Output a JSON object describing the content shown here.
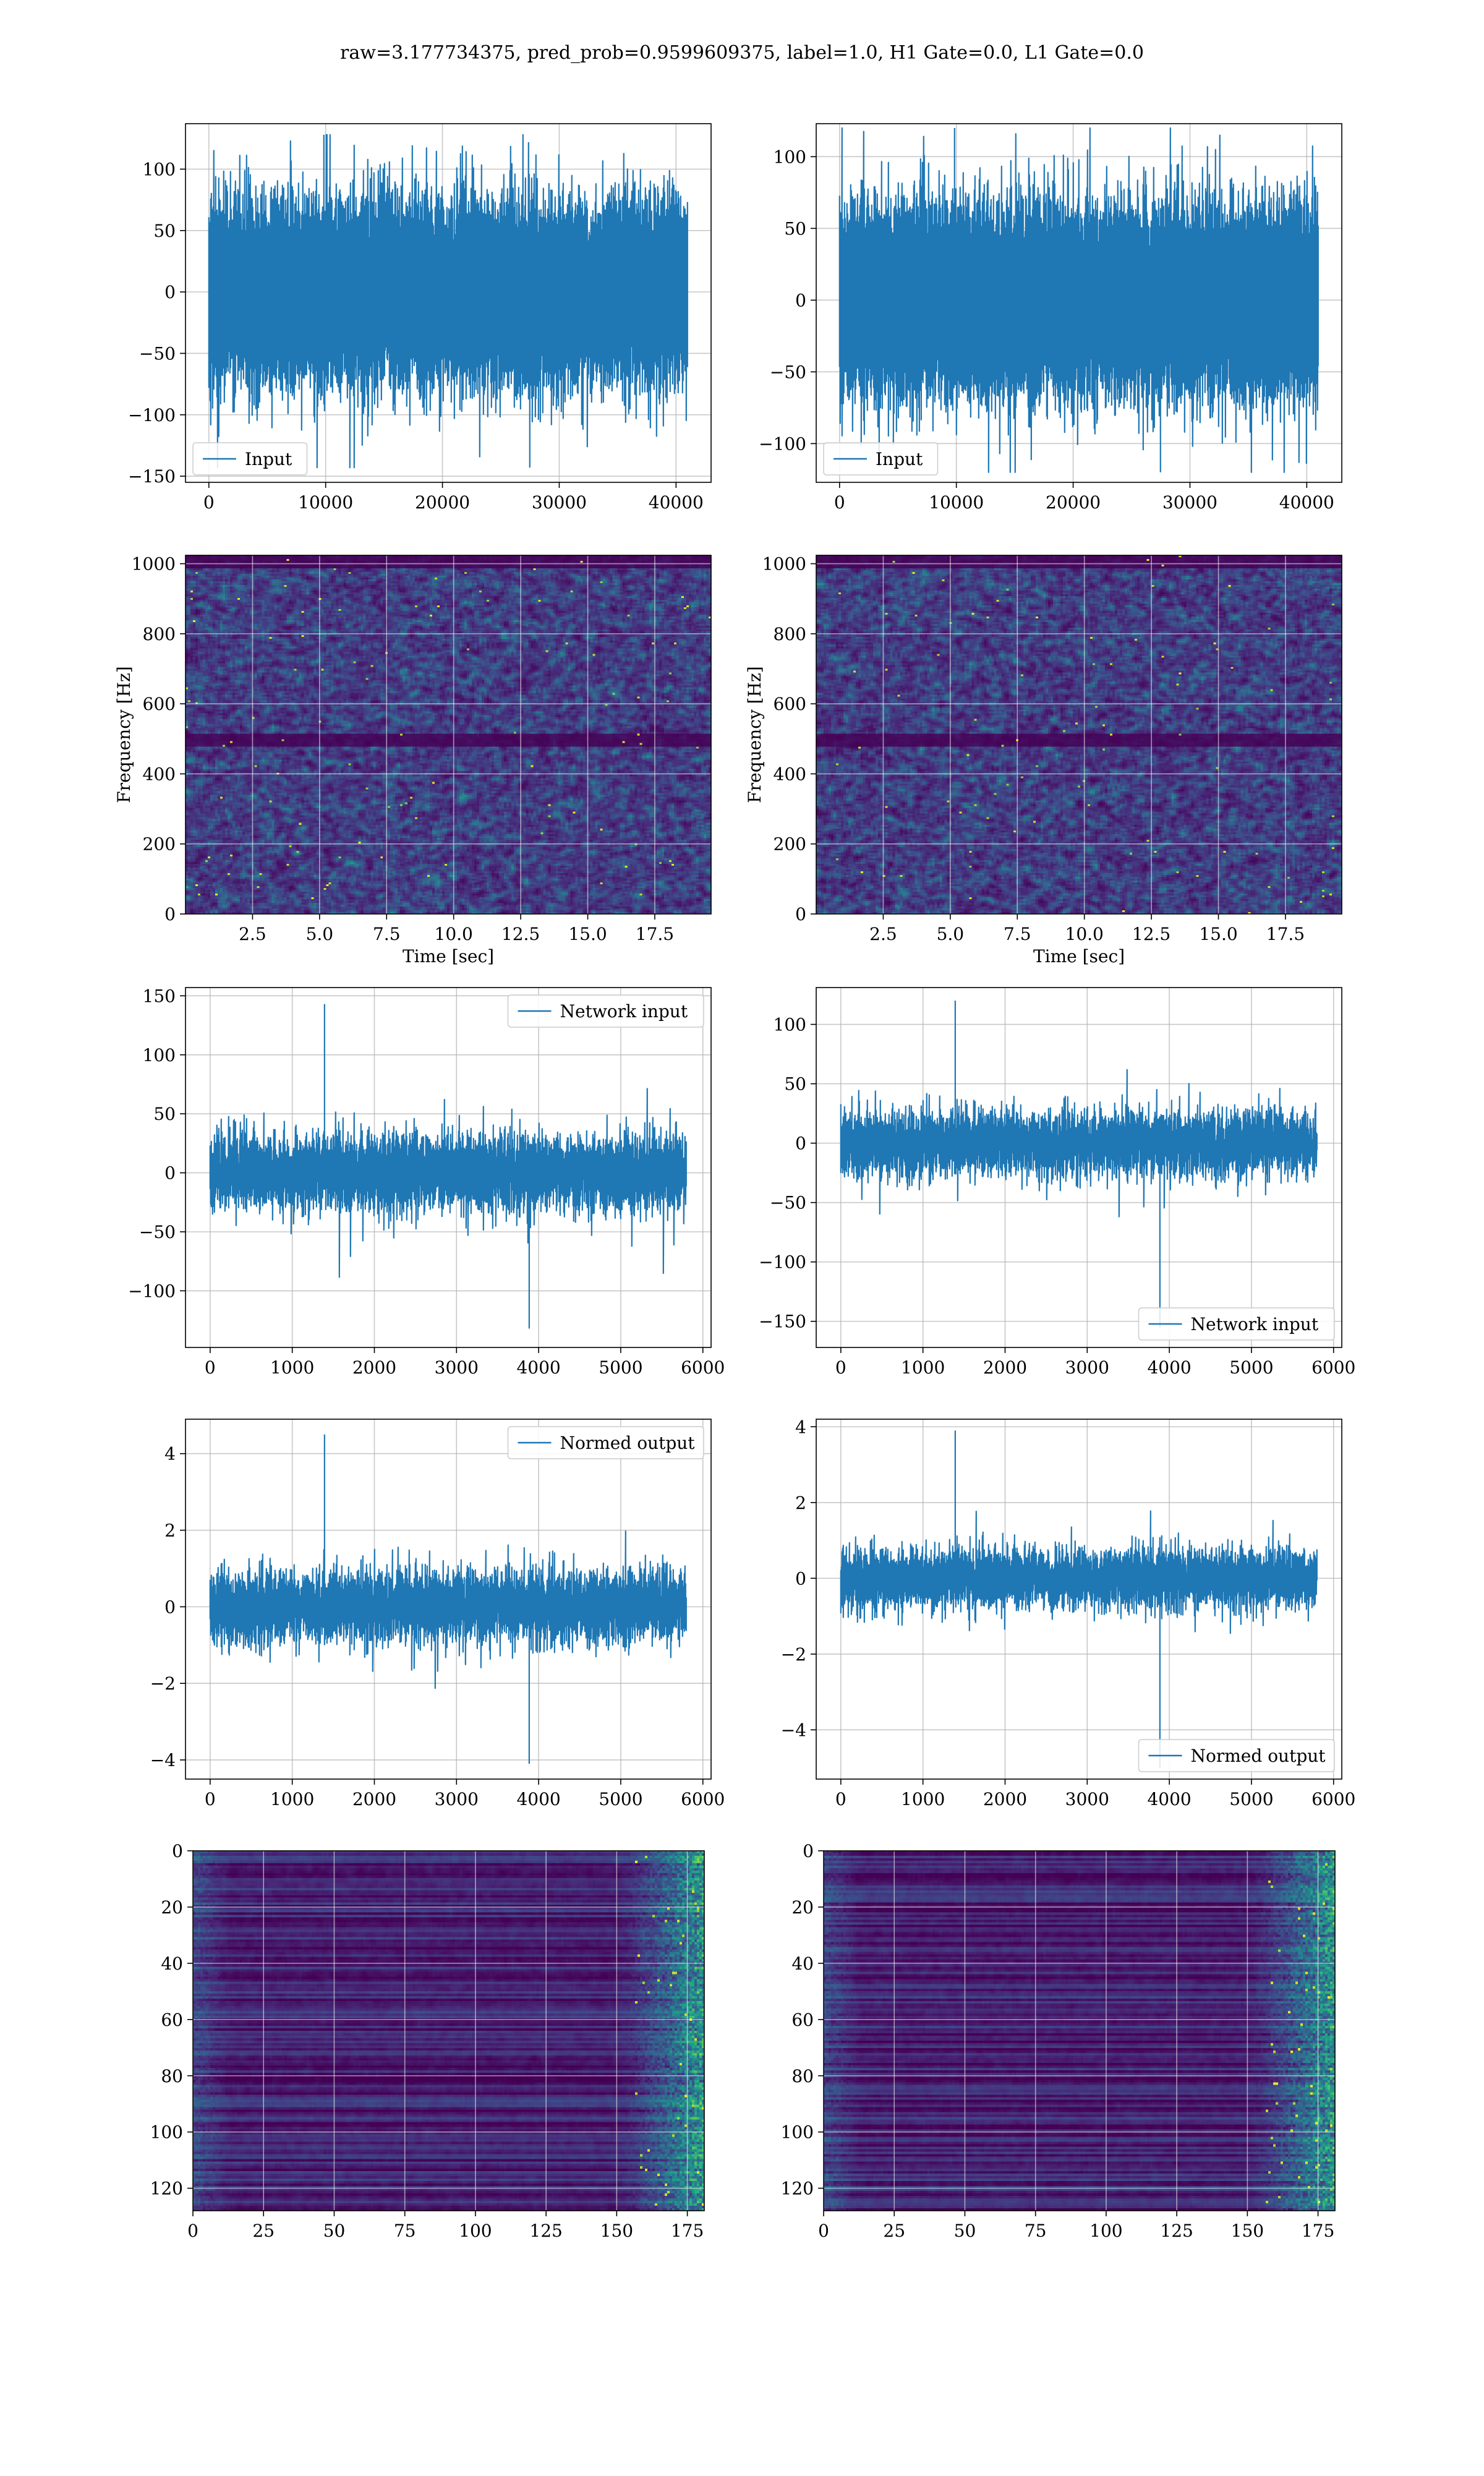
{
  "figure": {
    "suptitle": "raw=3.177734375, pred_prob=0.9599609375, label=1.0, H1 Gate=0.0, L1 Gate=0.0"
  },
  "colors": {
    "line": "#1f77b4",
    "grid": "#b0b0b0",
    "viridis_dark": "#440154",
    "viridis_mid": "#3b528b",
    "viridis_teal": "#21918c",
    "viridis_yellow": "#fde725"
  },
  "chart_data": [
    {
      "id": "input-h1",
      "type": "line",
      "legend": "Input",
      "legend_loc": "lower-left",
      "xlim": [
        -2000,
        43000
      ],
      "xticks": [
        0,
        10000,
        20000,
        30000,
        40000
      ],
      "ylim": [
        -155,
        137
      ],
      "yticks": [
        -150,
        -100,
        -50,
        0,
        50,
        100
      ],
      "signal": {
        "n_samples": 40960,
        "x_end": 40960,
        "core_amp": 65,
        "peak_max": 128,
        "peak_min": -143
      }
    },
    {
      "id": "input-l1",
      "type": "line",
      "legend": "Input",
      "legend_loc": "lower-left",
      "xlim": [
        -2000,
        43000
      ],
      "xticks": [
        0,
        10000,
        20000,
        30000,
        40000
      ],
      "ylim": [
        -127,
        123
      ],
      "yticks": [
        -100,
        -50,
        0,
        50,
        100
      ],
      "signal": {
        "n_samples": 40960,
        "x_end": 40960,
        "core_amp": 60,
        "peak_max": 120,
        "peak_min": -120
      }
    },
    {
      "id": "spec-h1",
      "type": "heatmap",
      "xlabel": "Time [sec]",
      "ylabel": "Frequency [Hz]",
      "xlim": [
        0,
        19.6
      ],
      "xticks": [
        2.5,
        5.0,
        7.5,
        10.0,
        12.5,
        15.0,
        17.5
      ],
      "xtick_labels": [
        "2.5",
        "5.0",
        "7.5",
        "10.0",
        "12.5",
        "15.0",
        "17.5"
      ],
      "ylim": [
        0,
        1024
      ],
      "yticks": [
        0,
        200,
        400,
        600,
        800,
        1000
      ],
      "colormap": "viridis",
      "dark_bands_hz": [
        500,
        1010
      ]
    },
    {
      "id": "spec-l1",
      "type": "heatmap",
      "xlabel": "Time [sec]",
      "ylabel": "Frequency [Hz]",
      "xlim": [
        0,
        19.6
      ],
      "xticks": [
        2.5,
        5.0,
        7.5,
        10.0,
        12.5,
        15.0,
        17.5
      ],
      "xtick_labels": [
        "2.5",
        "5.0",
        "7.5",
        "10.0",
        "12.5",
        "15.0",
        "17.5"
      ],
      "ylim": [
        0,
        1024
      ],
      "yticks": [
        0,
        200,
        400,
        600,
        800,
        1000
      ],
      "colormap": "viridis",
      "dark_bands_hz": [
        500,
        1010
      ]
    },
    {
      "id": "netin-h1",
      "type": "line",
      "legend": "Network input",
      "legend_loc": "upper-right",
      "xlim": [
        -300,
        6100
      ],
      "xticks": [
        0,
        1000,
        2000,
        3000,
        4000,
        5000,
        6000
      ],
      "ylim": [
        -148,
        157
      ],
      "yticks": [
        -100,
        -50,
        0,
        50,
        100,
        150
      ],
      "signal": {
        "n_samples": 5800,
        "x_end": 5800,
        "core_amp": 45,
        "peak_max": 143,
        "peak_min": -132
      }
    },
    {
      "id": "netin-l1",
      "type": "line",
      "legend": "Network input",
      "legend_loc": "lower-right",
      "xlim": [
        -300,
        6100
      ],
      "xticks": [
        0,
        1000,
        2000,
        3000,
        4000,
        5000,
        6000
      ],
      "ylim": [
        -172,
        131
      ],
      "yticks": [
        -150,
        -100,
        -50,
        0,
        50,
        100
      ],
      "signal": {
        "n_samples": 5800,
        "x_end": 5800,
        "core_amp": 38,
        "peak_max": 120,
        "peak_min": -155
      }
    },
    {
      "id": "normed-h1",
      "type": "line",
      "legend": "Normed output",
      "legend_loc": "upper-right",
      "xlim": [
        -300,
        6100
      ],
      "xticks": [
        0,
        1000,
        2000,
        3000,
        4000,
        5000,
        6000
      ],
      "ylim": [
        -4.5,
        4.9
      ],
      "yticks": [
        -4,
        -2,
        0,
        2,
        4
      ],
      "signal": {
        "n_samples": 5800,
        "x_end": 5800,
        "core_amp": 1.3,
        "peak_max": 4.5,
        "peak_min": -4.1
      }
    },
    {
      "id": "normed-l1",
      "type": "line",
      "legend": "Normed output",
      "legend_loc": "lower-right",
      "xlim": [
        -300,
        6100
      ],
      "xticks": [
        0,
        1000,
        2000,
        3000,
        4000,
        5000,
        6000
      ],
      "ylim": [
        -5.3,
        4.2
      ],
      "yticks": [
        -4,
        -2,
        0,
        2,
        4
      ],
      "signal": {
        "n_samples": 5800,
        "x_end": 5800,
        "core_amp": 1.1,
        "peak_max": 3.9,
        "peak_min": -5.0
      }
    },
    {
      "id": "features-h1",
      "type": "heatmap",
      "xlim": [
        0,
        181
      ],
      "xticks": [
        0,
        25,
        50,
        75,
        100,
        125,
        150,
        175
      ],
      "ylim": [
        128,
        0
      ],
      "yticks": [
        0,
        20,
        40,
        60,
        80,
        100,
        120
      ],
      "y_inverted": true,
      "colormap": "viridis",
      "rows": 128,
      "cols": 181
    },
    {
      "id": "features-l1",
      "type": "heatmap",
      "xlim": [
        0,
        181
      ],
      "xticks": [
        0,
        25,
        50,
        75,
        100,
        125,
        150,
        175
      ],
      "ylim": [
        128,
        0
      ],
      "yticks": [
        0,
        20,
        40,
        60,
        80,
        100,
        120
      ],
      "y_inverted": true,
      "colormap": "viridis",
      "rows": 128,
      "cols": 181
    }
  ]
}
